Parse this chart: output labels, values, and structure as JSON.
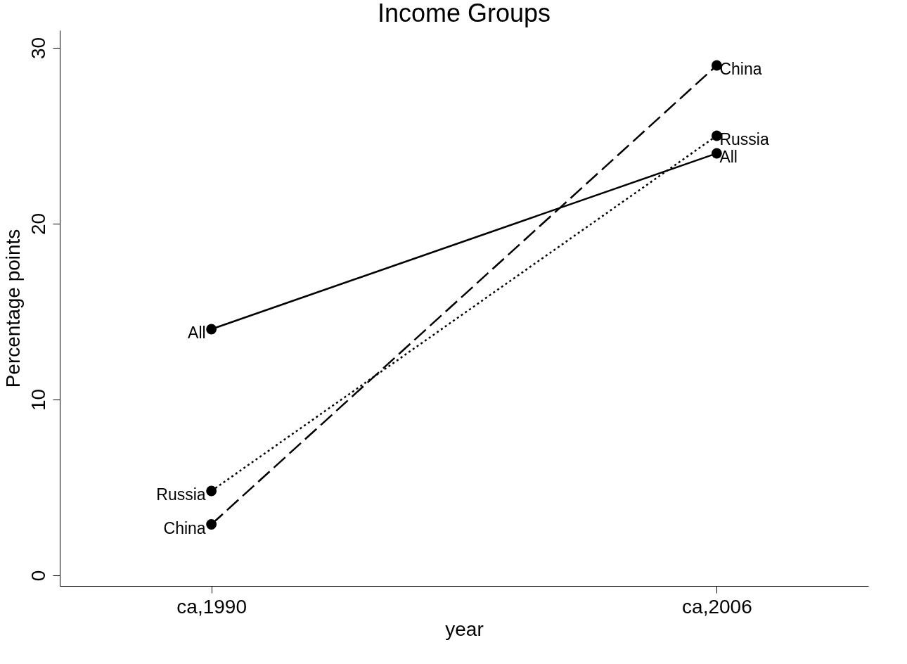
{
  "chart_data": {
    "type": "line",
    "title": "Income Groups",
    "xlabel": "year",
    "ylabel": "Percentage points",
    "categories": [
      "ca,1990",
      "ca,2006"
    ],
    "series": [
      {
        "name": "All",
        "color": "#000000",
        "values": [
          14,
          24
        ],
        "line_style": "solid"
      },
      {
        "name": "Russia",
        "color": "#000000",
        "values": [
          4.8,
          25
        ],
        "line_style": "dotted"
      },
      {
        "name": "China",
        "color": "#000000",
        "values": [
          2.9,
          29
        ],
        "line_style": "dashed"
      }
    ],
    "ylim": [
      -0.6,
      31
    ],
    "yticks": [
      0,
      10,
      20,
      30
    ],
    "grid": false,
    "marker": "circle"
  }
}
